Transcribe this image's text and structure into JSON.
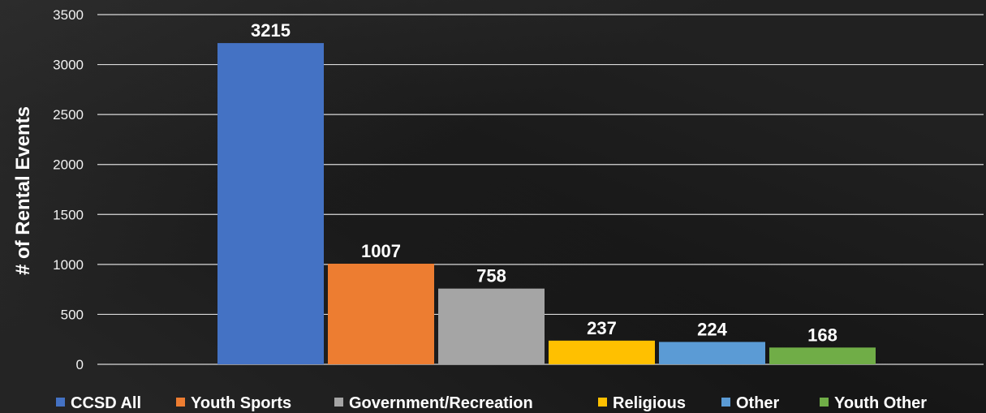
{
  "chart_data": {
    "type": "bar",
    "title": "",
    "xlabel": "",
    "ylabel": "# of Rental Events",
    "ylim": [
      0,
      3500
    ],
    "yticks": [
      0,
      500,
      1000,
      1500,
      2000,
      2500,
      3000,
      3500
    ],
    "grid": true,
    "legend_position": "bottom",
    "series": [
      {
        "name": "CCSD All",
        "value": 3215,
        "color": "#4472C4"
      },
      {
        "name": "Youth Sports",
        "value": 1007,
        "color": "#ED7D31"
      },
      {
        "name": "Government/Recreation",
        "value": 758,
        "color": "#A5A5A5"
      },
      {
        "name": "Religious",
        "value": 237,
        "color": "#FFC000"
      },
      {
        "name": "Other",
        "value": 224,
        "color": "#5B9BD5"
      },
      {
        "name": "Youth Other",
        "value": 168,
        "color": "#70AD47"
      }
    ]
  }
}
